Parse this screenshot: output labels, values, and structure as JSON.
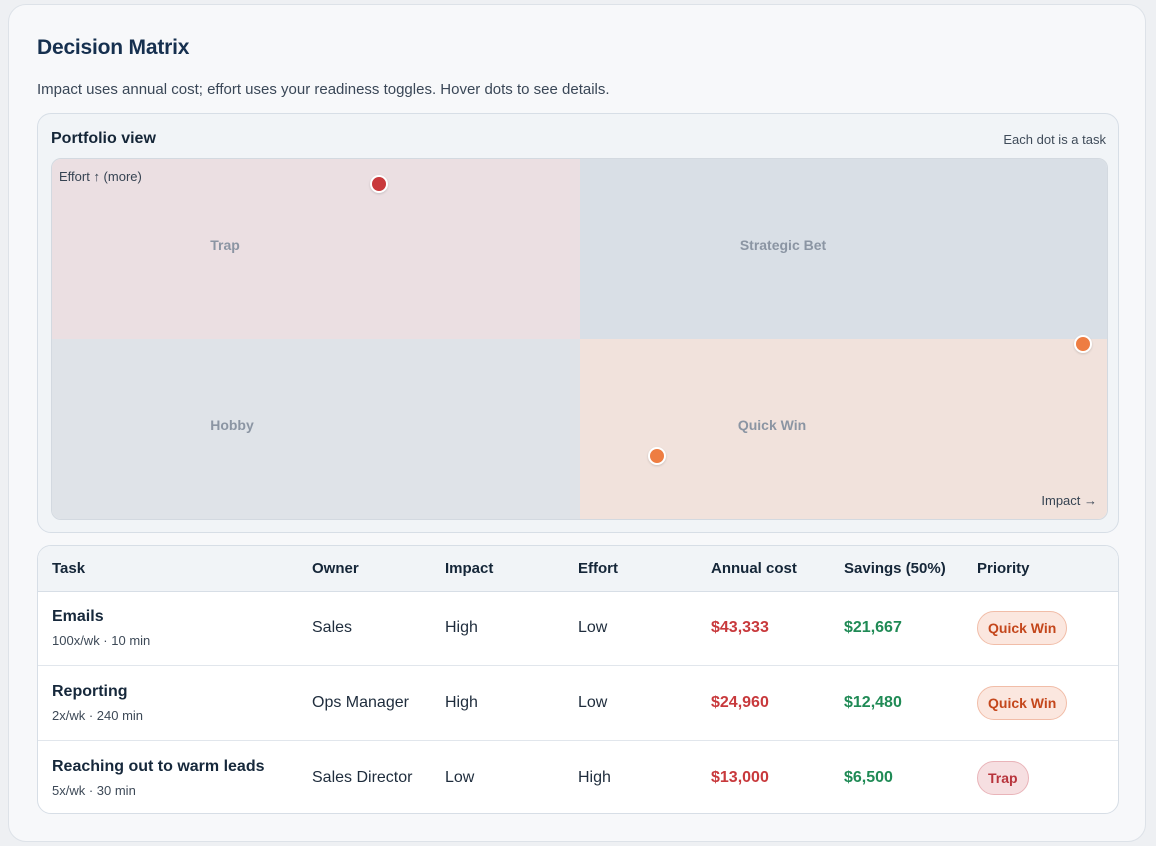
{
  "header": {
    "title": "Decision Matrix",
    "subtitle": "Impact uses annual cost; effort uses your readiness toggles. Hover dots to see details."
  },
  "portfolio": {
    "title": "Portfolio view",
    "note": "Each dot is a task",
    "axis_y_label": "Effort ↑ (more)",
    "axis_x_label": "Impact →",
    "quadrants": {
      "trap": "Trap",
      "strategic_bet": "Strategic Bet",
      "hobby": "Hobby",
      "quick_win": "Quick Win"
    },
    "dots": [
      {
        "task": "Reaching out to warm leads",
        "impact": 0.31,
        "effort": 0.93,
        "color": "#c9393c"
      },
      {
        "task": "Emails",
        "impact": 0.977,
        "effort": 0.485,
        "color": "#ee7d42"
      },
      {
        "task": "Reporting",
        "impact": 0.573,
        "effort": 0.175,
        "color": "#ee7d42"
      }
    ]
  },
  "table": {
    "headers": [
      "Task",
      "Owner",
      "Impact",
      "Effort",
      "Annual cost",
      "Savings (50%)",
      "Priority"
    ],
    "rows": [
      {
        "task": "Emails",
        "meta": "100x/wk · 10 min",
        "owner": "Sales",
        "impact": "High",
        "effort": "Low",
        "annual_cost": "$43,333",
        "savings": "$21,667",
        "priority": "Quick Win"
      },
      {
        "task": "Reporting",
        "meta": "2x/wk · 240 min",
        "owner": "Ops Manager",
        "impact": "High",
        "effort": "Low",
        "annual_cost": "$24,960",
        "savings": "$12,480",
        "priority": "Quick Win"
      },
      {
        "task": "Reaching out to warm leads",
        "meta": "5x/wk · 30 min",
        "owner": "Sales Director",
        "impact": "Low",
        "effort": "High",
        "annual_cost": "$13,000",
        "savings": "$6,500",
        "priority": "Trap"
      }
    ]
  },
  "colors": {
    "cost": "#c8393c",
    "savings": "#1f8a55",
    "quick_win": "#c4471c",
    "trap": "#b8343c"
  }
}
